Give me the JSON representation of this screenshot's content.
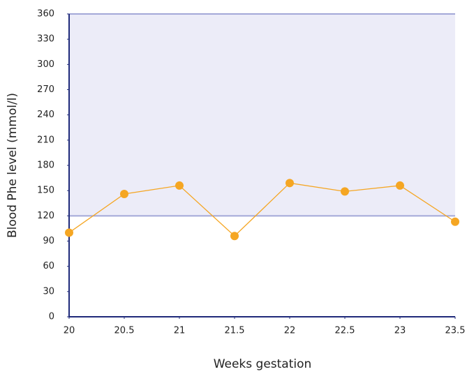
{
  "chart_data": {
    "type": "line",
    "x_label": "Weeks gestation",
    "y_label": "Blood Phe level (mmol/l)",
    "x": [
      20,
      20.5,
      21,
      21.5,
      22,
      22.5,
      23,
      23.5
    ],
    "series": [
      {
        "name": "Blood Phe level",
        "color": "#f5a623",
        "values": [
          100,
          146,
          156,
          96,
          159,
          149,
          156,
          113
        ]
      }
    ],
    "xlim": [
      20,
      23.5
    ],
    "xticks": [
      20,
      20.5,
      21,
      21.5,
      22,
      22.5,
      23,
      23.5
    ],
    "ylim": [
      0,
      360
    ],
    "yticks": [
      0,
      30,
      60,
      90,
      120,
      150,
      180,
      210,
      240,
      270,
      300,
      330,
      360
    ],
    "band": {
      "range": [
        120,
        360
      ],
      "color": "#ececf8",
      "edge_color": "#a3a8d8"
    },
    "axis_color": "#1f2a7a"
  }
}
